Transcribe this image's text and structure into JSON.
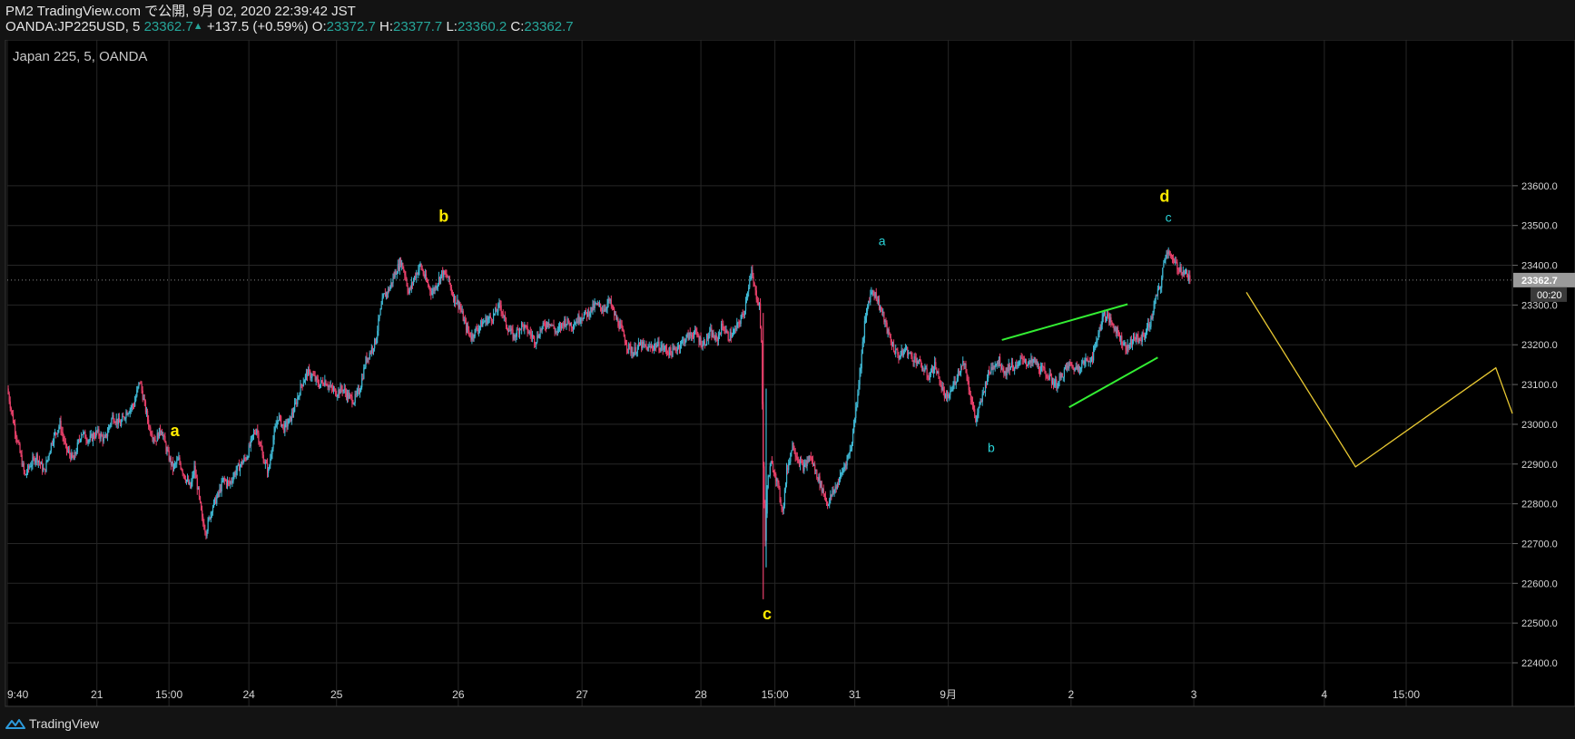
{
  "header": {
    "publish_line": "PM2 TradingView.com で公開, 9月 02, 2020 22:39:42 JST",
    "symbol": "OANDA:JP225USD, 5",
    "last": "23362.7",
    "change_arrow": "▲",
    "change": "+137.5 (+0.59%)",
    "o_label": "O:",
    "o_value": "23372.7",
    "h_label": "H:",
    "h_value": "23377.7",
    "l_label": "L:",
    "l_value": "23360.2",
    "c_label": "C:",
    "c_value": "23362.7"
  },
  "chart_title": "Japan 225, 5, OANDA",
  "footer": {
    "brand": "TradingView",
    "icon": "tradingview-logo-icon"
  },
  "colors": {
    "background": "#000000",
    "grid": "#262626",
    "up_candle": "#3fb8d4",
    "down_candle": "#e8406a",
    "wave_major": "#ffeb00",
    "wave_minor": "#2ad3d8",
    "trendline": "#33ee33",
    "projection": "#e8c832",
    "price_tag": "#9a9a9a"
  },
  "chart_data": {
    "type": "candlestick",
    "title": "Japan 225, 5, OANDA",
    "ylim": [
      22400,
      23700
    ],
    "y_ticks": [
      22400,
      22500,
      22600,
      22700,
      22800,
      22900,
      23000,
      23100,
      23200,
      23300,
      23400,
      23500,
      23600
    ],
    "y_tick_labels": [
      "22400.0",
      "22500.0",
      "22600.0",
      "22700.0",
      "22800.0",
      "22900.0",
      "23000.0",
      "23100.0",
      "23200.0",
      "23300.0",
      "23400.0",
      "23500.0",
      "23600.0"
    ],
    "x_ticks": [
      {
        "label": "9:40",
        "t": 0
      },
      {
        "label": "21",
        "t": 92
      },
      {
        "label": "15:00",
        "t": 166
      },
      {
        "label": "24",
        "t": 248
      },
      {
        "label": "25",
        "t": 338
      },
      {
        "label": "26",
        "t": 463
      },
      {
        "label": "27",
        "t": 590
      },
      {
        "label": "28",
        "t": 712
      },
      {
        "label": "15:00",
        "t": 788
      },
      {
        "label": "31",
        "t": 870
      },
      {
        "label": "9月",
        "t": 966
      },
      {
        "label": "2",
        "t": 1092
      },
      {
        "label": "3",
        "t": 1218
      },
      {
        "label": "4",
        "t": 1352
      },
      {
        "label": "15:00",
        "t": 1436
      }
    ],
    "x_range": [
      0,
      1545
    ],
    "last_price": 23362.7,
    "last_price_label": "23362.7",
    "countdown_label": "00:20",
    "price_path": [
      [
        0,
        23090
      ],
      [
        6,
        23010
      ],
      [
        12,
        22940
      ],
      [
        18,
        22870
      ],
      [
        24,
        22900
      ],
      [
        30,
        22920
      ],
      [
        38,
        22880
      ],
      [
        46,
        22960
      ],
      [
        54,
        23000
      ],
      [
        60,
        22940
      ],
      [
        68,
        22910
      ],
      [
        76,
        22980
      ],
      [
        84,
        22960
      ],
      [
        92,
        22980
      ],
      [
        100,
        22960
      ],
      [
        108,
        23020
      ],
      [
        116,
        23000
      ],
      [
        122,
        23030
      ],
      [
        130,
        23050
      ],
      [
        136,
        23110
      ],
      [
        140,
        23060
      ],
      [
        146,
        22990
      ],
      [
        152,
        22960
      ],
      [
        158,
        22990
      ],
      [
        164,
        22930
      ],
      [
        170,
        22890
      ],
      [
        176,
        22910
      ],
      [
        182,
        22870
      ],
      [
        188,
        22840
      ],
      [
        192,
        22890
      ],
      [
        196,
        22830
      ],
      [
        200,
        22760
      ],
      [
        204,
        22730
      ],
      [
        210,
        22790
      ],
      [
        216,
        22820
      ],
      [
        222,
        22860
      ],
      [
        228,
        22850
      ],
      [
        234,
        22880
      ],
      [
        240,
        22900
      ],
      [
        246,
        22920
      ],
      [
        252,
        22970
      ],
      [
        256,
        22990
      ],
      [
        262,
        22920
      ],
      [
        268,
        22880
      ],
      [
        272,
        22950
      ],
      [
        278,
        23020
      ],
      [
        284,
        22990
      ],
      [
        290,
        23010
      ],
      [
        296,
        23050
      ],
      [
        302,
        23100
      ],
      [
        308,
        23130
      ],
      [
        314,
        23120
      ],
      [
        320,
        23100
      ],
      [
        326,
        23110
      ],
      [
        332,
        23090
      ],
      [
        338,
        23080
      ],
      [
        344,
        23090
      ],
      [
        350,
        23070
      ],
      [
        356,
        23060
      ],
      [
        362,
        23090
      ],
      [
        368,
        23160
      ],
      [
        374,
        23190
      ],
      [
        378,
        23210
      ],
      [
        382,
        23270
      ],
      [
        386,
        23320
      ],
      [
        392,
        23340
      ],
      [
        398,
        23380
      ],
      [
        404,
        23410
      ],
      [
        408,
        23380
      ],
      [
        412,
        23330
      ],
      [
        418,
        23370
      ],
      [
        424,
        23400
      ],
      [
        430,
        23360
      ],
      [
        436,
        23330
      ],
      [
        440,
        23350
      ],
      [
        446,
        23380
      ],
      [
        452,
        23370
      ],
      [
        458,
        23320
      ],
      [
        464,
        23300
      ],
      [
        470,
        23250
      ],
      [
        476,
        23220
      ],
      [
        482,
        23240
      ],
      [
        490,
        23260
      ],
      [
        498,
        23270
      ],
      [
        506,
        23300
      ],
      [
        512,
        23250
      ],
      [
        520,
        23220
      ],
      [
        528,
        23250
      ],
      [
        536,
        23230
      ],
      [
        542,
        23210
      ],
      [
        548,
        23240
      ],
      [
        556,
        23260
      ],
      [
        564,
        23230
      ],
      [
        572,
        23260
      ],
      [
        580,
        23250
      ],
      [
        588,
        23270
      ],
      [
        596,
        23280
      ],
      [
        604,
        23300
      ],
      [
        612,
        23290
      ],
      [
        618,
        23310
      ],
      [
        624,
        23270
      ],
      [
        630,
        23240
      ],
      [
        636,
        23200
      ],
      [
        642,
        23180
      ],
      [
        650,
        23200
      ],
      [
        658,
        23190
      ],
      [
        666,
        23200
      ],
      [
        674,
        23190
      ],
      [
        682,
        23180
      ],
      [
        690,
        23200
      ],
      [
        698,
        23220
      ],
      [
        706,
        23230
      ],
      [
        714,
        23200
      ],
      [
        722,
        23230
      ],
      [
        728,
        23210
      ],
      [
        734,
        23250
      ],
      [
        740,
        23220
      ],
      [
        746,
        23230
      ],
      [
        752,
        23260
      ],
      [
        756,
        23280
      ],
      [
        760,
        23340
      ],
      [
        764,
        23380
      ],
      [
        768,
        23330
      ],
      [
        772,
        23300
      ],
      [
        774,
        23200
      ],
      [
        776,
        22900
      ],
      [
        778,
        22700
      ],
      [
        780,
        22850
      ],
      [
        784,
        22900
      ],
      [
        788,
        22880
      ],
      [
        792,
        22830
      ],
      [
        796,
        22780
      ],
      [
        800,
        22880
      ],
      [
        806,
        22950
      ],
      [
        812,
        22910
      ],
      [
        818,
        22890
      ],
      [
        824,
        22920
      ],
      [
        830,
        22880
      ],
      [
        836,
        22840
      ],
      [
        842,
        22800
      ],
      [
        848,
        22830
      ],
      [
        854,
        22860
      ],
      [
        860,
        22900
      ],
      [
        866,
        22940
      ],
      [
        872,
        23060
      ],
      [
        876,
        23150
      ],
      [
        880,
        23250
      ],
      [
        884,
        23310
      ],
      [
        888,
        23340
      ],
      [
        892,
        23320
      ],
      [
        898,
        23280
      ],
      [
        904,
        23230
      ],
      [
        910,
        23190
      ],
      [
        916,
        23170
      ],
      [
        922,
        23190
      ],
      [
        928,
        23170
      ],
      [
        934,
        23160
      ],
      [
        940,
        23140
      ],
      [
        946,
        23120
      ],
      [
        952,
        23150
      ],
      [
        958,
        23100
      ],
      [
        964,
        23060
      ],
      [
        970,
        23090
      ],
      [
        976,
        23130
      ],
      [
        982,
        23160
      ],
      [
        988,
        23080
      ],
      [
        994,
        23010
      ],
      [
        1000,
        23060
      ],
      [
        1006,
        23120
      ],
      [
        1012,
        23150
      ],
      [
        1018,
        23160
      ],
      [
        1024,
        23130
      ],
      [
        1030,
        23150
      ],
      [
        1036,
        23140
      ],
      [
        1042,
        23170
      ],
      [
        1048,
        23150
      ],
      [
        1054,
        23160
      ],
      [
        1060,
        23140
      ],
      [
        1066,
        23130
      ],
      [
        1072,
        23110
      ],
      [
        1078,
        23100
      ],
      [
        1084,
        23130
      ],
      [
        1090,
        23150
      ],
      [
        1096,
        23140
      ],
      [
        1102,
        23150
      ],
      [
        1108,
        23160
      ],
      [
        1114,
        23170
      ],
      [
        1120,
        23230
      ],
      [
        1126,
        23280
      ],
      [
        1132,
        23260
      ],
      [
        1138,
        23240
      ],
      [
        1144,
        23210
      ],
      [
        1150,
        23190
      ],
      [
        1156,
        23220
      ],
      [
        1162,
        23210
      ],
      [
        1168,
        23230
      ],
      [
        1174,
        23260
      ],
      [
        1178,
        23310
      ],
      [
        1184,
        23350
      ],
      [
        1188,
        23420
      ],
      [
        1192,
        23440
      ],
      [
        1196,
        23410
      ],
      [
        1200,
        23400
      ],
      [
        1204,
        23390
      ],
      [
        1210,
        23380
      ],
      [
        1214,
        23362
      ]
    ],
    "trendlines": [
      {
        "from": [
          1021,
          23212
        ],
        "to": [
          1150,
          23302
        ]
      },
      {
        "from": [
          1090,
          23043
        ],
        "to": [
          1181,
          23168
        ]
      }
    ],
    "projection": [
      [
        1272,
        23332
      ],
      [
        1384,
        22893
      ],
      [
        1528,
        23142
      ],
      [
        1545,
        23027
      ]
    ],
    "annotations": [
      {
        "text": "a",
        "t": 172,
        "price": 22970,
        "class": "major"
      },
      {
        "text": "b",
        "t": 448,
        "price": 23510,
        "class": "major"
      },
      {
        "text": "c",
        "t": 780,
        "price": 22510,
        "class": "major"
      },
      {
        "text": "d",
        "t": 1188,
        "price": 23560,
        "class": "major"
      },
      {
        "text": "a",
        "t": 898,
        "price": 23450,
        "class": "minor"
      },
      {
        "text": "b",
        "t": 1010,
        "price": 22930,
        "class": "minor"
      },
      {
        "text": "c",
        "t": 1192,
        "price": 23510,
        "class": "minor"
      }
    ]
  }
}
